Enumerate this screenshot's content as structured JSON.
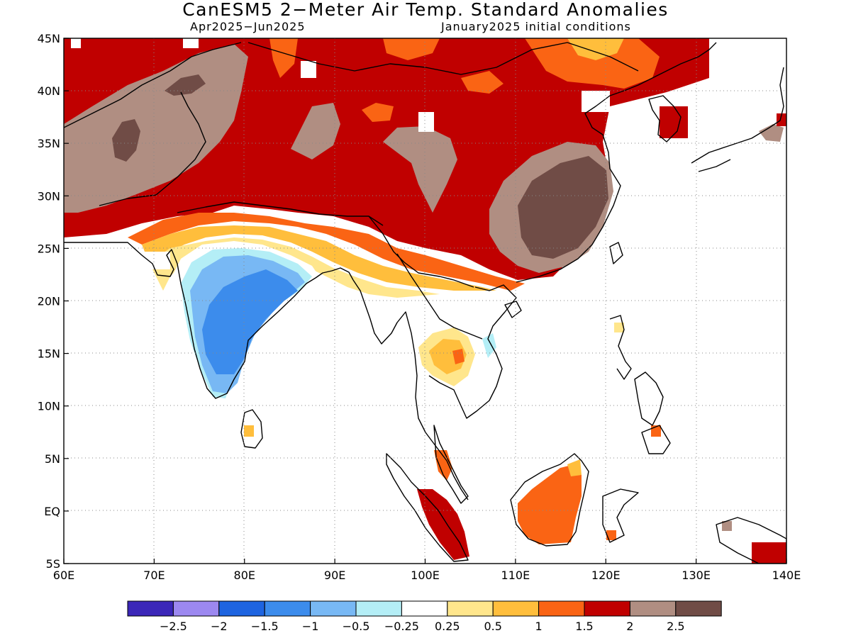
{
  "title": "CanESM5 2−Meter Air Temp. Standard Anomalies",
  "subtitle_left": "Apr2025−Jun2025",
  "subtitle_right": "January2025 initial conditions",
  "map": {
    "lon_range": [
      60,
      140
    ],
    "lat_range": [
      -5,
      45
    ],
    "lon_ticks": [
      "60E",
      "70E",
      "80E",
      "90E",
      "100E",
      "110E",
      "120E",
      "130E",
      "140E"
    ],
    "lat_ticks": [
      "45N",
      "40N",
      "35N",
      "30N",
      "25N",
      "20N",
      "15N",
      "10N",
      "5N",
      "EQ",
      "5S"
    ],
    "gridlines": "dotted"
  },
  "colorbar": {
    "labels": [
      "−2.5",
      "−2",
      "−1.5",
      "−1",
      "−0.5",
      "−0.25",
      "0.25",
      "0.5",
      "1",
      "1.5",
      "2",
      "2.5"
    ],
    "colors": [
      "#3b27b8",
      "#9c88f0",
      "#1e64e0",
      "#3c8cec",
      "#78b8f4",
      "#b4eef6",
      "#ffffff",
      "#ffe68c",
      "#ffbe3c",
      "#fa6414",
      "#c00000",
      "#b08e82",
      "#704c46"
    ]
  },
  "palette": {
    "brown_dark": "#704c46",
    "brown_light": "#b08e82",
    "red": "#c00000",
    "orange": "#fa6414",
    "orange_light": "#ffbe3c",
    "yellow": "#ffe68c",
    "white": "#ffffff",
    "cyan": "#b4eef6",
    "blue_light": "#78b8f4",
    "blue": "#3c8cec"
  }
}
